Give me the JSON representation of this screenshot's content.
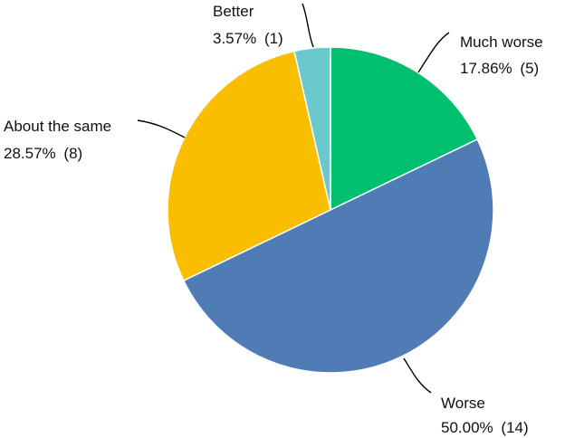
{
  "chart_data": {
    "type": "pie",
    "title": "",
    "start_angle_deg": 0,
    "direction": "clockwise",
    "slices": [
      {
        "label": "Much worse",
        "percent": 17.86,
        "count": 5,
        "percent_text": "17.86%",
        "count_text": "(5)",
        "color": "#00BF6F"
      },
      {
        "label": "Worse",
        "percent": 50.0,
        "count": 14,
        "percent_text": "50.00%",
        "count_text": "(14)",
        "color": "#507CB6"
      },
      {
        "label": "About the same",
        "percent": 28.57,
        "count": 8,
        "percent_text": "28.57%",
        "count_text": "(8)",
        "color": "#F9BE00"
      },
      {
        "label": "Better",
        "percent": 3.57,
        "count": 1,
        "percent_text": "3.57%",
        "count_text": "(1)",
        "color": "#6BC8CD"
      }
    ],
    "legend": "none",
    "data_labels": "outside with leader lines"
  }
}
